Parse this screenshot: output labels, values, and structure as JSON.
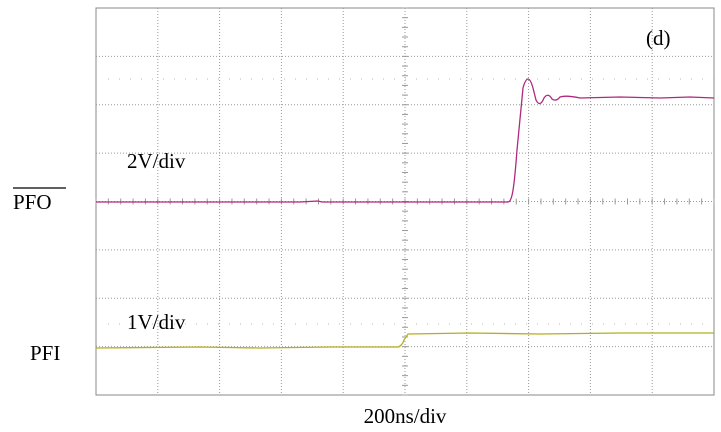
{
  "panel_label": "(d)",
  "traces": [
    {
      "name": "PFO",
      "scale": "2V/div"
    },
    {
      "name": "PFI",
      "scale": "1V/div"
    }
  ],
  "x_scale": "200ns/div"
}
